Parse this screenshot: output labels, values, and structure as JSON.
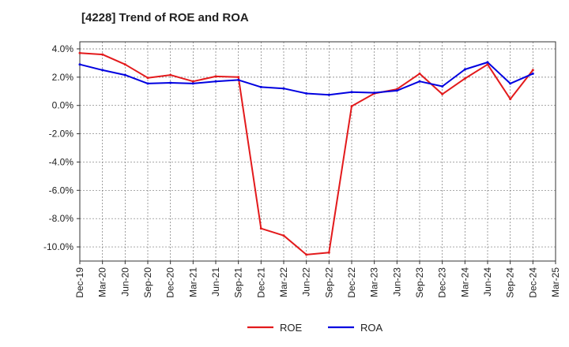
{
  "chart_data": {
    "type": "line",
    "title": "[4228]  Trend of ROE and ROA",
    "xlabel": "",
    "ylabel": "",
    "categories": [
      "Dec-19",
      "Mar-20",
      "Jun-20",
      "Sep-20",
      "Dec-20",
      "Mar-21",
      "Jun-21",
      "Sep-21",
      "Dec-21",
      "Mar-22",
      "Jun-22",
      "Sep-22",
      "Dec-22",
      "Mar-23",
      "Jun-23",
      "Sep-23",
      "Dec-23",
      "Mar-24",
      "Jun-24",
      "Sep-24",
      "Dec-24",
      "Mar-25"
    ],
    "series": [
      {
        "name": "ROE",
        "color": "#e31a1c",
        "values": [
          3.7,
          3.6,
          2.9,
          1.95,
          2.15,
          1.7,
          2.05,
          2.0,
          -8.7,
          -9.2,
          -10.55,
          -10.4,
          -0.05,
          0.85,
          1.15,
          2.25,
          0.8,
          1.9,
          2.9,
          0.45,
          2.5,
          null
        ]
      },
      {
        "name": "ROA",
        "color": "#0000e0",
        "values": [
          2.9,
          2.5,
          2.15,
          1.55,
          1.6,
          1.55,
          1.7,
          1.8,
          1.3,
          1.2,
          0.85,
          0.75,
          0.95,
          0.9,
          1.05,
          1.7,
          1.35,
          2.55,
          3.05,
          1.55,
          2.25,
          null
        ]
      }
    ],
    "yticks": [
      4.0,
      2.0,
      0.0,
      -2.0,
      -4.0,
      -6.0,
      -8.0,
      -10.0
    ],
    "ytick_labels": [
      "4.0%",
      "2.0%",
      "0.0%",
      "-2.0%",
      "-4.0%",
      "-6.0%",
      "-8.0%",
      "-10.0%"
    ],
    "ylim": [
      -11.0,
      4.5
    ],
    "grid": true,
    "legend_position": "bottom-center"
  }
}
